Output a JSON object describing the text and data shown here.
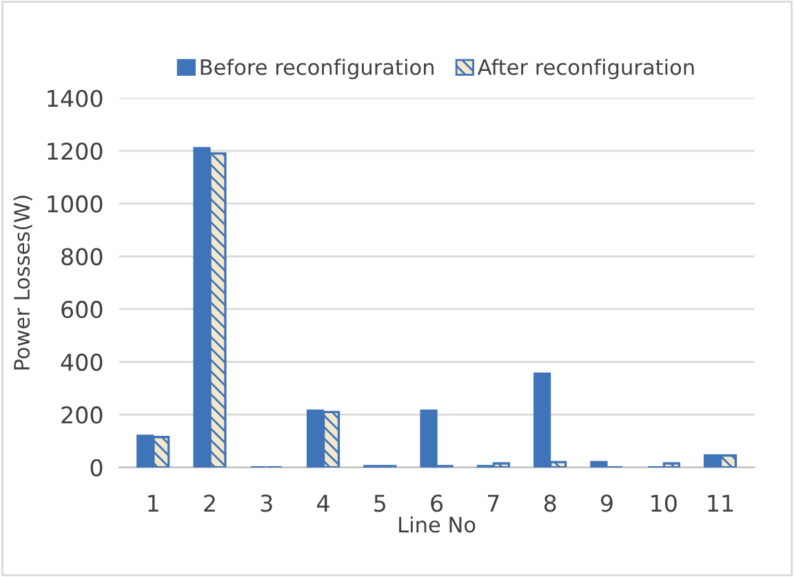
{
  "chart_data": {
    "type": "bar",
    "xlabel": "Line No",
    "ylabel": "Power Losses(W)",
    "categories": [
      "1",
      "2",
      "3",
      "4",
      "5",
      "6",
      "7",
      "8",
      "9",
      "10",
      "11"
    ],
    "series": [
      {
        "name": "Before reconfiguration",
        "color": "#3f74b8",
        "values": [
          120,
          1210,
          0,
          215,
          5,
          215,
          5,
          355,
          20,
          0,
          45
        ]
      },
      {
        "name": "After reconfiguration",
        "color": "#3f74b8",
        "values": [
          115,
          1190,
          0,
          210,
          5,
          5,
          15,
          20,
          0,
          15,
          45
        ]
      }
    ],
    "ylim": [
      0,
      1400
    ],
    "yticks": [
      0,
      200,
      400,
      600,
      800,
      1000,
      1200,
      1400
    ],
    "grid": "y",
    "legend": "top"
  }
}
